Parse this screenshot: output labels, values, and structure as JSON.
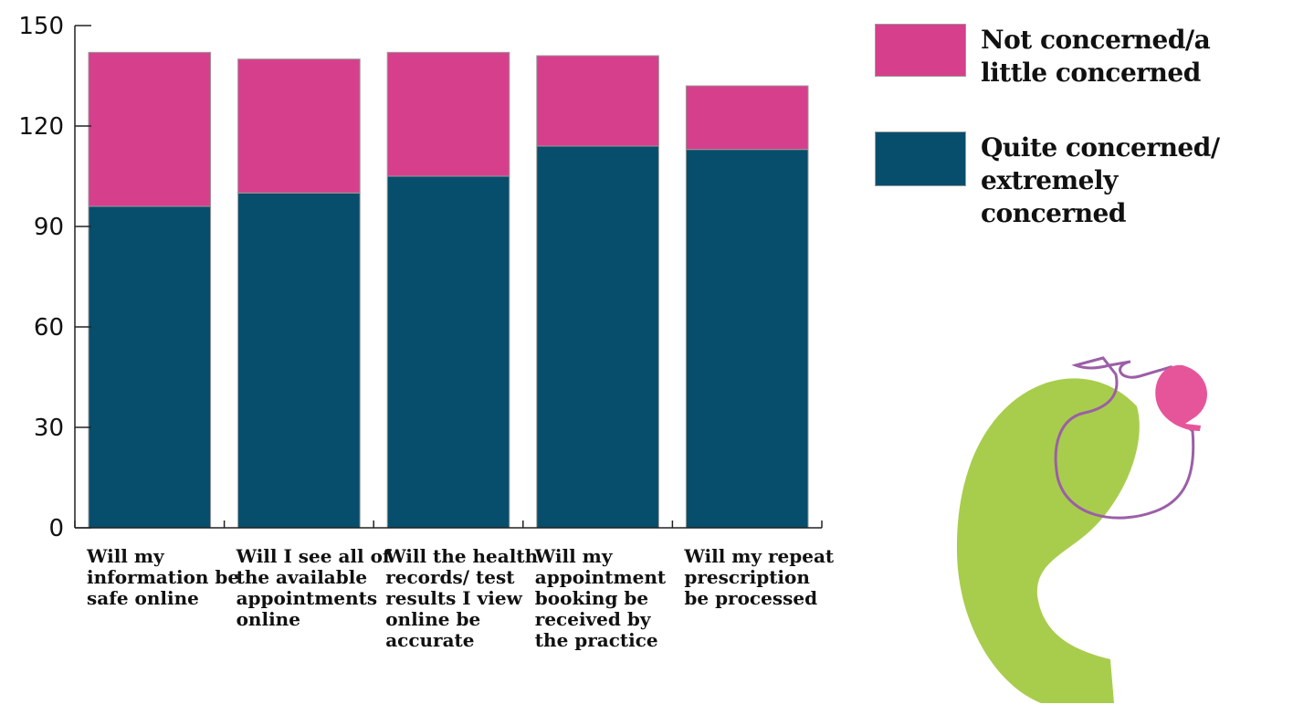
{
  "chart_data": {
    "type": "bar",
    "stacked": true,
    "categories": [
      "Will my information be safe online",
      "Will I see all of the available appointments online",
      "Will the health records/ test results I view online be accurate",
      "Will my appointment booking be received by the practice",
      "Will my repeat prescription be processed"
    ],
    "series": [
      {
        "name": "Quite concerned/ extremely concerned",
        "color": "#064e6c",
        "values": [
          96,
          100,
          105,
          114,
          113
        ]
      },
      {
        "name": "Not concerned/a little concerned",
        "color": "#d63f8c",
        "values": [
          46,
          40,
          37,
          27,
          19
        ]
      }
    ],
    "yticks": [
      "0",
      "30",
      "60",
      "90",
      "120",
      "150"
    ],
    "ylim": [
      0,
      150
    ],
    "grid": false,
    "legend_position": "right"
  },
  "legend": [
    {
      "label": "Not concerned/a little concerned",
      "color": "#d63f8c"
    },
    {
      "label": "Quite concerned/ extremely concerned",
      "color": "#064e6c"
    }
  ],
  "decoration": {
    "quote_green": "#a8cd4c",
    "quote_pink": "#e6559a",
    "quote_purple": "#9b5fa7"
  }
}
